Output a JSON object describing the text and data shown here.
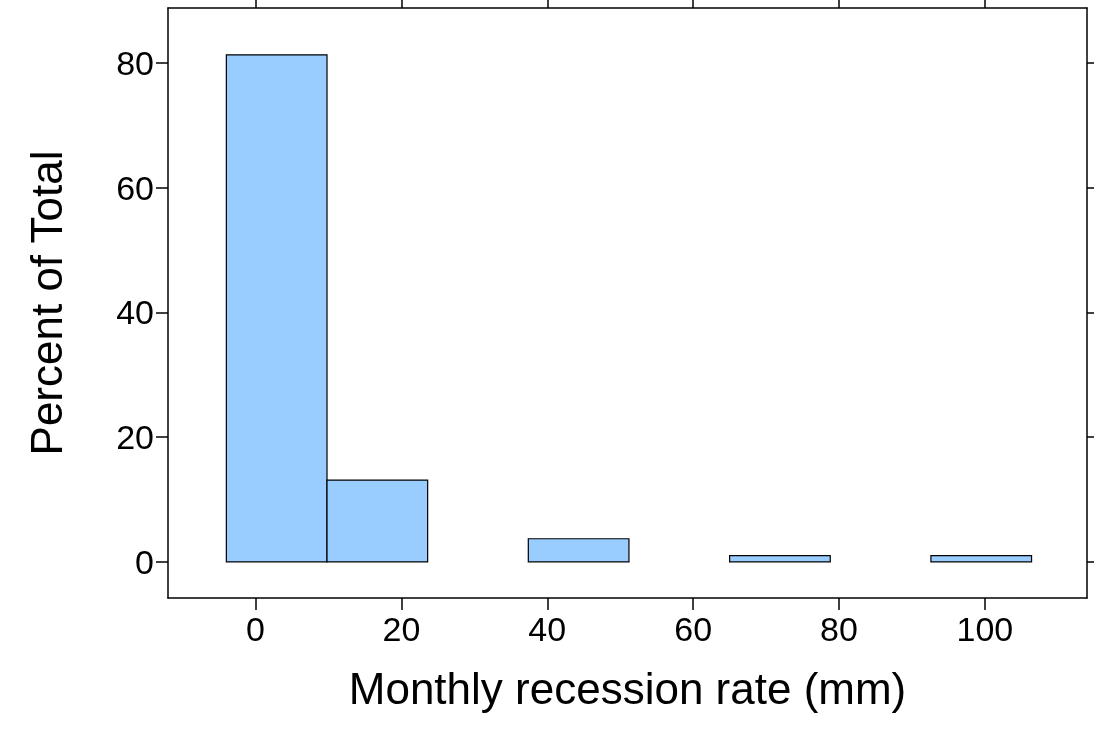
{
  "chart_data": {
    "type": "histogram",
    "xlabel": "Monthly recession rate (mm)",
    "ylabel": "Percent of Total",
    "bins": [
      -4,
      9.8,
      23.6,
      37.4,
      51.2,
      65,
      78.8,
      92.6,
      106.4
    ],
    "values": [
      81.3,
      13.1,
      0,
      3.7,
      0,
      1.0,
      0,
      1.0
    ],
    "color": "#99ccff",
    "xlim": [
      -12,
      114
    ],
    "xticks": [
      0,
      20,
      40,
      60,
      80,
      100
    ],
    "ylim": [
      -5.8,
      88.8
    ],
    "yticks": [
      0,
      20,
      40,
      60,
      80
    ],
    "grid": false
  }
}
